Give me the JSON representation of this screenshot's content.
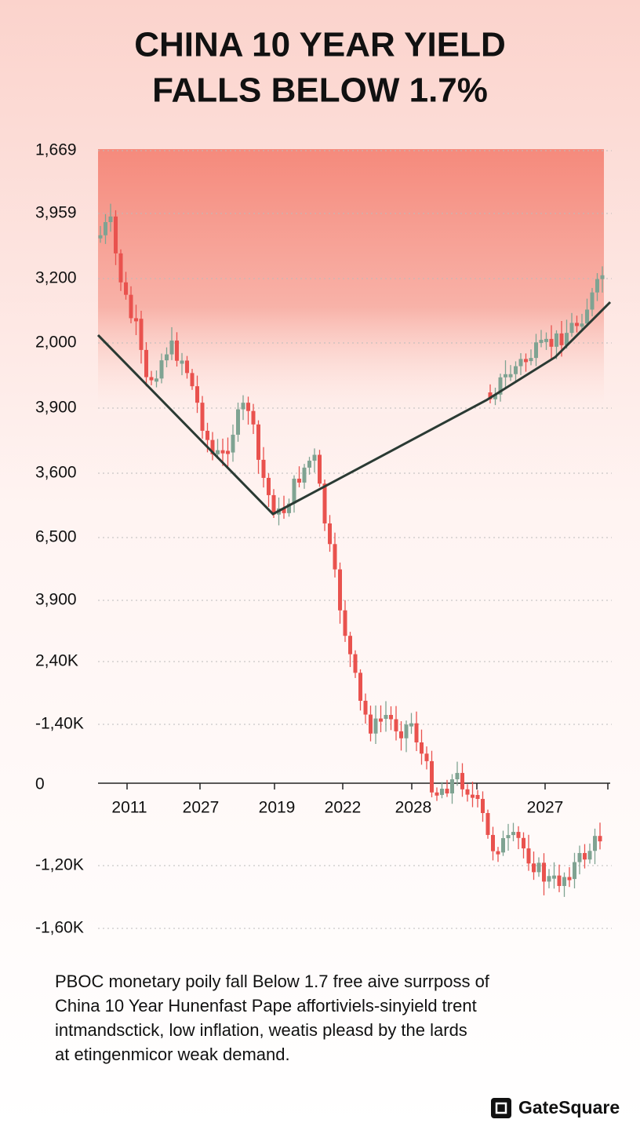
{
  "header": {
    "title_lines": [
      "CHINA 10 YEAR YIELD",
      "FALLS BELOW 1.7%"
    ]
  },
  "axis": {
    "y_labels": [
      "1,669",
      "3,959",
      "3,200",
      "2,000",
      "3,900",
      "3,600",
      "6,500",
      "3,900",
      "2,40K",
      "-1,40K",
      "0",
      "-1,20K",
      "-1,60K"
    ],
    "x_labels": [
      "2011",
      "2027",
      "2019",
      "2022",
      "2028",
      "2027"
    ]
  },
  "caption": {
    "lines": [
      "PBOC monetary poily fall Below 1.7 free aive surrposs of",
      "China 10 Year Hunenfast Pape affortiviels-sinyield trent",
      "intmandsctick, low inflation, weatis pleasd by the lards",
      "at etingenmicor weak demand."
    ]
  },
  "brand": {
    "name": "GateSquare"
  }
}
